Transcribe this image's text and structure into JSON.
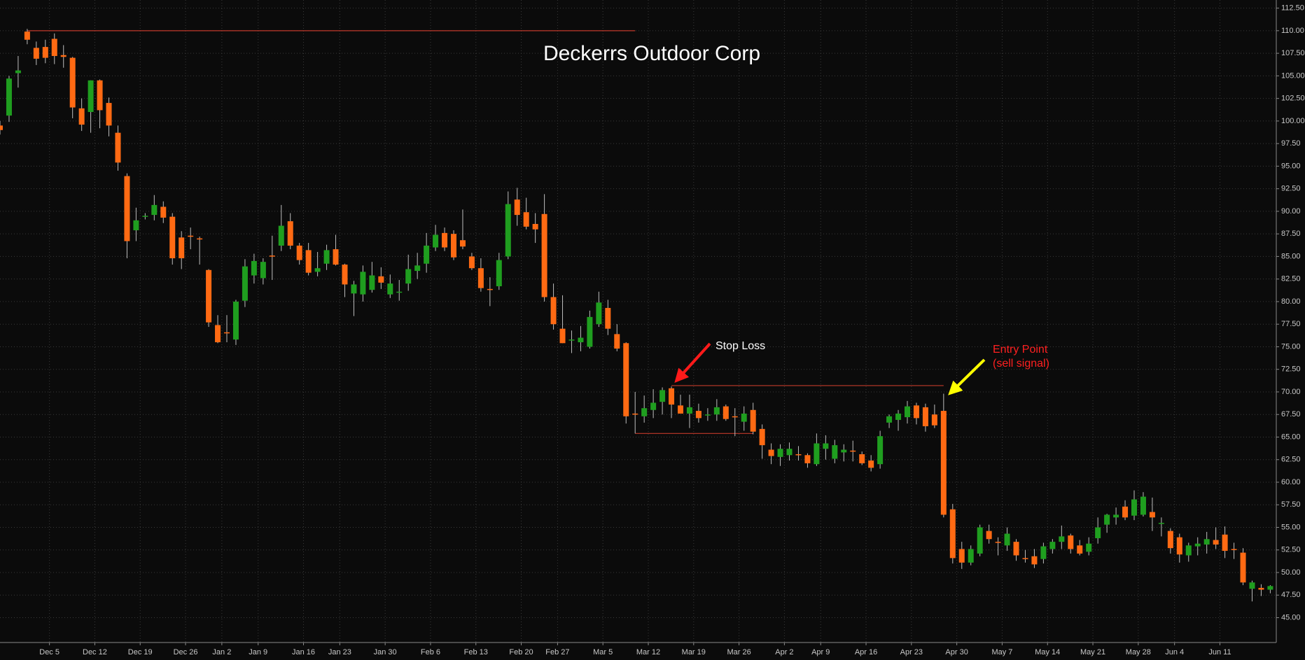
{
  "chart_data": {
    "type": "candlestick",
    "title": "Deckerrs Outdoor Corp",
    "up_color": "#1f9e1f",
    "down_color": "#ff6a13",
    "grid": true,
    "ylim": [
      42.25,
      113.4
    ],
    "yticks": [
      {
        "value": 45,
        "label": "45.00"
      },
      {
        "value": 47.5,
        "label": "47.50"
      },
      {
        "value": 50,
        "label": "50.00"
      },
      {
        "value": 52.5,
        "label": "52.50"
      },
      {
        "value": 55,
        "label": "55.00"
      },
      {
        "value": 57.5,
        "label": "57.50"
      },
      {
        "value": 60,
        "label": "60.00"
      },
      {
        "value": 62.5,
        "label": "62.50"
      },
      {
        "value": 65,
        "label": "65.00"
      },
      {
        "value": 67.5,
        "label": "67.50"
      },
      {
        "value": 70,
        "label": "70.00"
      },
      {
        "value": 72.5,
        "label": "72.50"
      },
      {
        "value": 75,
        "label": "75.00"
      },
      {
        "value": 77.5,
        "label": "77.50"
      },
      {
        "value": 80,
        "label": "80.00"
      },
      {
        "value": 82.5,
        "label": "82.50"
      },
      {
        "value": 85,
        "label": "85.00"
      },
      {
        "value": 87.5,
        "label": "87.50"
      },
      {
        "value": 90,
        "label": "90.00"
      },
      {
        "value": 92.5,
        "label": "92.50"
      },
      {
        "value": 95,
        "label": "95.00"
      },
      {
        "value": 97.5,
        "label": "97.50"
      },
      {
        "value": 100,
        "label": "100.00"
      },
      {
        "value": 102.5,
        "label": "102.50"
      },
      {
        "value": 105,
        "label": "105.00"
      },
      {
        "value": 107.5,
        "label": "107.50"
      },
      {
        "value": 110,
        "label": "110.00"
      },
      {
        "value": 112.5,
        "label": "112.50"
      }
    ],
    "categories": [
      null,
      null,
      null,
      null,
      null,
      "Dec 5",
      null,
      null,
      null,
      null,
      "Dec 12",
      null,
      null,
      null,
      null,
      "Dec 19",
      null,
      null,
      null,
      null,
      "Dec 26",
      null,
      null,
      null,
      "Jan 2",
      null,
      null,
      null,
      "Jan 9",
      null,
      null,
      null,
      null,
      "Jan 16",
      null,
      null,
      null,
      "Jan 23",
      null,
      null,
      null,
      null,
      "Jan 30",
      null,
      null,
      null,
      null,
      "Feb 6",
      null,
      null,
      null,
      null,
      "Feb 13",
      null,
      null,
      null,
      null,
      "Feb 20",
      null,
      null,
      null,
      "Feb 27",
      null,
      null,
      null,
      null,
      "Mar 5",
      null,
      null,
      null,
      null,
      "Mar 12",
      null,
      null,
      null,
      null,
      "Mar 19",
      null,
      null,
      null,
      null,
      "Mar 26",
      null,
      null,
      null,
      null,
      "Apr 2",
      null,
      null,
      null,
      "Apr 9",
      null,
      null,
      null,
      null,
      "Apr 16",
      null,
      null,
      null,
      null,
      "Apr 23",
      null,
      null,
      null,
      null,
      "Apr 30",
      null,
      null,
      null,
      null,
      "May 7",
      null,
      null,
      null,
      null,
      "May 14",
      null,
      null,
      null,
      null,
      "May 21",
      null,
      null,
      null,
      null,
      "May 28",
      null,
      null,
      null,
      "Jun 4",
      null,
      null,
      null,
      null,
      "Jun 11",
      null,
      null,
      null,
      null,
      null,
      null
    ],
    "ohlc": [
      [
        99.5,
        100,
        98.5,
        99
      ],
      [
        100.6,
        105,
        99.9,
        104.7
      ],
      [
        105.3,
        107.2,
        103.7,
        105.6
      ],
      [
        109.9,
        110.2,
        108.5,
        109
      ],
      [
        108.1,
        108.8,
        106.2,
        106.9
      ],
      [
        108.2,
        109,
        106.4,
        107
      ],
      [
        109.1,
        109.7,
        106.3,
        107.2
      ],
      [
        107.3,
        108.4,
        105.9,
        107.1
      ],
      [
        107,
        107.1,
        100.3,
        101.5
      ],
      [
        101.4,
        102.5,
        98.9,
        99.6
      ],
      [
        101,
        104.5,
        98.7,
        104.5
      ],
      [
        104.5,
        104.6,
        99.2,
        101.2
      ],
      [
        102,
        102.6,
        98.3,
        99.5
      ],
      [
        98.7,
        99.5,
        94.5,
        95.4
      ],
      [
        93.9,
        94.2,
        84.8,
        86.7
      ],
      [
        87.9,
        90.4,
        86.7,
        89
      ],
      [
        89.4,
        89.8,
        89.1,
        89.5
      ],
      [
        89.6,
        91.8,
        89,
        90.7
      ],
      [
        90.5,
        91.1,
        88.7,
        89.3
      ],
      [
        89.4,
        89.8,
        84.1,
        84.8
      ],
      [
        87.1,
        87.8,
        83.6,
        84.8
      ],
      [
        87.3,
        88.2,
        85.8,
        87.2
      ],
      [
        87,
        87.2,
        84.1,
        86.9
      ],
      [
        83.5,
        83.6,
        77.2,
        77.7
      ],
      [
        77.4,
        78.5,
        75.4,
        75.5
      ],
      [
        76.6,
        78.5,
        75.5,
        76.5
      ],
      [
        75.8,
        80.2,
        75.2,
        80
      ],
      [
        80.1,
        84.7,
        79.4,
        83.9
      ],
      [
        82.9,
        85.3,
        82,
        84.5
      ],
      [
        82.6,
        84.8,
        81.9,
        84.4
      ],
      [
        85.1,
        87.3,
        82.4,
        85
      ],
      [
        86.2,
        90.7,
        85.6,
        88.4
      ],
      [
        88.9,
        89.8,
        85.8,
        86.2
      ],
      [
        86.2,
        86.5,
        84.1,
        84.6
      ],
      [
        85.7,
        86.5,
        82.9,
        83.2
      ],
      [
        83.3,
        85.5,
        82.8,
        83.7
      ],
      [
        84.2,
        86.3,
        83.5,
        85.7
      ],
      [
        85.8,
        87.4,
        84,
        84.1
      ],
      [
        84.1,
        84.2,
        80.5,
        81.9
      ],
      [
        80.9,
        82.3,
        78.4,
        81.9
      ],
      [
        80.8,
        84,
        80,
        83.3
      ],
      [
        81.3,
        84.4,
        81,
        82.9
      ],
      [
        82.8,
        83.8,
        81.4,
        82.1
      ],
      [
        80.8,
        83,
        80.4,
        82
      ],
      [
        81.1,
        82.4,
        80.1,
        81.1
      ],
      [
        82,
        85.2,
        81.2,
        83.6
      ],
      [
        83.4,
        85.4,
        82.5,
        84
      ],
      [
        84.2,
        87.6,
        83.2,
        86.2
      ],
      [
        86,
        88.5,
        85.6,
        87.4
      ],
      [
        87.6,
        88.2,
        85.6,
        86
      ],
      [
        87.5,
        87.9,
        84.6,
        84.9
      ],
      [
        86.8,
        90.2,
        85.8,
        86.1
      ],
      [
        85,
        85.4,
        83.5,
        83.7
      ],
      [
        83.7,
        84.8,
        81.1,
        81.5
      ],
      [
        81.4,
        82.7,
        79.5,
        81.3
      ],
      [
        81.7,
        85.4,
        81.3,
        84.6
      ],
      [
        85,
        92.2,
        84.7,
        90.8
      ],
      [
        91.3,
        92.6,
        88.4,
        89.6
      ],
      [
        89.9,
        91.5,
        88,
        88.3
      ],
      [
        88.6,
        89.8,
        86.5,
        88
      ],
      [
        89.7,
        91.9,
        80,
        80.5
      ],
      [
        80.5,
        82,
        76.9,
        77.5
      ],
      [
        77,
        80.7,
        75.4,
        75.4
      ],
      [
        75.8,
        76.8,
        74.3,
        75.8
      ],
      [
        75.5,
        77.3,
        74.5,
        76
      ],
      [
        75,
        79,
        74.8,
        78.3
      ],
      [
        77.5,
        81.1,
        77.2,
        79.9
      ],
      [
        79.3,
        80.2,
        76.3,
        77
      ],
      [
        76.4,
        77.5,
        74.5,
        74.8
      ],
      [
        75.4,
        75.5,
        66.5,
        67.3
      ],
      [
        67.6,
        70,
        65.4,
        67.5
      ],
      [
        67.3,
        69.6,
        66.6,
        68.2
      ],
      [
        68,
        70.3,
        67.1,
        68.8
      ],
      [
        68.9,
        70.5,
        67.5,
        70.2
      ],
      [
        70.4,
        70.6,
        67.1,
        68.6
      ],
      [
        68.5,
        69.7,
        67.6,
        67.6
      ],
      [
        67.6,
        69.7,
        66,
        68.3
      ],
      [
        67.9,
        68.7,
        66.6,
        67.1
      ],
      [
        67.5,
        68.2,
        66.8,
        67.5
      ],
      [
        67.5,
        69.2,
        66.8,
        68.3
      ],
      [
        68.4,
        68.6,
        66.8,
        67
      ],
      [
        67.3,
        68.2,
        65.1,
        67.2
      ],
      [
        66.7,
        68.4,
        65.7,
        67.6
      ],
      [
        68,
        68.8,
        65.3,
        65.6
      ],
      [
        65.9,
        66.4,
        62.6,
        64.1
      ],
      [
        63.6,
        64.3,
        62,
        62.9
      ],
      [
        62.8,
        64.2,
        61.8,
        63.7
      ],
      [
        63,
        64.4,
        62.4,
        63.7
      ],
      [
        63.1,
        64,
        62.4,
        63
      ],
      [
        63,
        63.2,
        61.6,
        62.1
      ],
      [
        62,
        65.4,
        61.8,
        64.3
      ],
      [
        63.7,
        65.2,
        62.5,
        64.3
      ],
      [
        62.6,
        64.7,
        62.1,
        64.1
      ],
      [
        63.3,
        64.2,
        62.3,
        63.6
      ],
      [
        63.5,
        64.6,
        62.3,
        63.4
      ],
      [
        63.1,
        63.4,
        61.9,
        62.1
      ],
      [
        62.4,
        63,
        61.2,
        61.6
      ],
      [
        62,
        65.7,
        61.5,
        65.1
      ],
      [
        66.6,
        67.5,
        66,
        67.3
      ],
      [
        66.9,
        68,
        65.7,
        67.6
      ],
      [
        67.2,
        69,
        66.5,
        68.4
      ],
      [
        68.5,
        68.8,
        66.4,
        67.1
      ],
      [
        68.3,
        68.7,
        65.6,
        66.2
      ],
      [
        67.5,
        68.6,
        66,
        66.3
      ],
      [
        67.9,
        69.8,
        56.1,
        56.4
      ],
      [
        57,
        57.6,
        51,
        51.6
      ],
      [
        52.6,
        53.4,
        50.4,
        51.1
      ],
      [
        51.1,
        53,
        50.8,
        52.6
      ],
      [
        52.1,
        55.3,
        51.8,
        55
      ],
      [
        54.6,
        55.3,
        53.2,
        53.7
      ],
      [
        53.4,
        53.9,
        51.9,
        53.3
      ],
      [
        53,
        55,
        52.4,
        54.3
      ],
      [
        53.4,
        53.7,
        51.3,
        51.9
      ],
      [
        51.6,
        52.5,
        51.1,
        51.5
      ],
      [
        51.8,
        52.6,
        50.5,
        50.9
      ],
      [
        51.5,
        53.3,
        51,
        52.9
      ],
      [
        52.6,
        53.7,
        52.1,
        53.4
      ],
      [
        53.4,
        55.2,
        52.6,
        54
      ],
      [
        54.1,
        54.3,
        52.1,
        52.6
      ],
      [
        53,
        53.6,
        51.9,
        52.1
      ],
      [
        52.3,
        53.9,
        51.9,
        53.2
      ],
      [
        53.8,
        56.1,
        53.2,
        55
      ],
      [
        55.3,
        56.5,
        54.4,
        56.4
      ],
      [
        56.1,
        57.2,
        55.3,
        56.4
      ],
      [
        57.3,
        58,
        55.8,
        56.1
      ],
      [
        56.3,
        59.1,
        55.8,
        58.1
      ],
      [
        56.4,
        58.9,
        56.2,
        58.4
      ],
      [
        56.7,
        58.3,
        54.6,
        56.1
      ],
      [
        55.4,
        56.1,
        54,
        55.5
      ],
      [
        54.6,
        54.9,
        52.1,
        52.7
      ],
      [
        53.9,
        54.3,
        51.1,
        52
      ],
      [
        51.9,
        53.3,
        51.2,
        53
      ],
      [
        52.9,
        53.9,
        51.9,
        53.2
      ],
      [
        53.1,
        54.5,
        52.1,
        53.7
      ],
      [
        53.6,
        55,
        52.6,
        53.1
      ],
      [
        54.2,
        55.1,
        51.6,
        52.4
      ],
      [
        52.6,
        53.3,
        51.5,
        52.5
      ],
      [
        52.2,
        52.7,
        48.6,
        48.9
      ],
      [
        48.2,
        49.1,
        46.8,
        48.9
      ],
      [
        48.3,
        48.7,
        47.4,
        48.1
      ],
      [
        48.1,
        48.6,
        47.7,
        48.5
      ]
    ],
    "levels": [
      {
        "value": 110,
        "from": 3,
        "to": 70,
        "color": "#c0392b"
      },
      {
        "value": 70.7,
        "from": 74,
        "to": 104,
        "color": "#c0392b"
      },
      {
        "value": 65.4,
        "from": 70,
        "to": 83,
        "color": "#c0392b"
      }
    ],
    "annotations": [
      {
        "lines": [
          "Stop Loss"
        ],
        "color": "#ffffff"
      },
      {
        "lines": [
          "Entry Point",
          "(sell signal)"
        ],
        "color": "#ff2020"
      }
    ]
  }
}
